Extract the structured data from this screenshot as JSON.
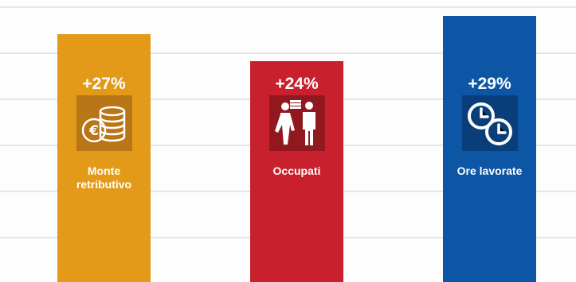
{
  "chart_data": {
    "type": "bar",
    "categories": [
      "Monte\nretributivo",
      "Occupati",
      "Ore lavorate"
    ],
    "values": [
      27,
      24,
      29
    ],
    "value_labels": [
      "+27%",
      "+24%",
      "+29%"
    ],
    "title": "",
    "xlabel": "",
    "ylabel": "",
    "ylim": [
      0,
      30
    ],
    "grid": true,
    "legend": "none"
  },
  "bars": [
    {
      "color": "#e39a19",
      "icon_bg": "#b87616",
      "icon": "coins-euro-icon"
    },
    {
      "color": "#c8202c",
      "icon_bg": "#921820",
      "icon": "workers-icon"
    },
    {
      "color": "#0d56a6",
      "icon_bg": "#093e7a",
      "icon": "clocks-icon"
    }
  ]
}
